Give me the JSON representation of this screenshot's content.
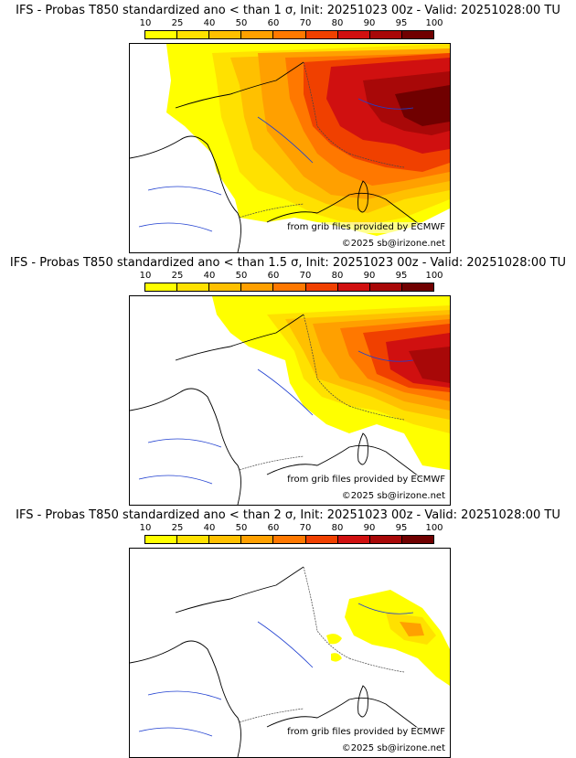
{
  "panels": [
    {
      "title": "IFS - Probas T850  standardized ano < than 1 σ, Init: 20251023 00z - Valid: 20251028:00 TU",
      "threshold": "1 σ"
    },
    {
      "title": "IFS - Probas T850  standardized ano < than 1.5 σ, Init: 20251023 00z - Valid: 20251028:00 TU",
      "threshold": "1.5 σ"
    },
    {
      "title": "IFS - Probas T850  standardized ano < than 2 σ, Init: 20251023 00z - Valid: 20251028:00 TU",
      "threshold": "2 σ"
    }
  ],
  "colorbar": {
    "ticks": [
      "10",
      "25",
      "40",
      "50",
      "60",
      "70",
      "80",
      "90",
      "95",
      "100"
    ],
    "colors": [
      "#ffff00",
      "#ffe100",
      "#ffc000",
      "#ffa000",
      "#ff7800",
      "#f04000",
      "#d01010",
      "#a80808",
      "#700000"
    ]
  },
  "credits": {
    "source": "from grib files provided by ECMWF",
    "copyright": "©2025 sb@irizone.net"
  }
}
